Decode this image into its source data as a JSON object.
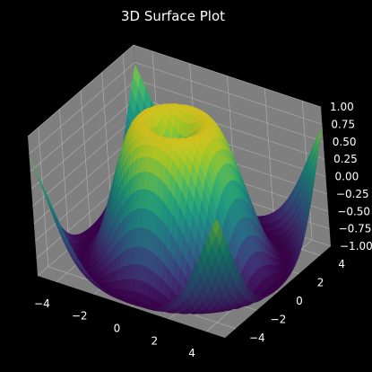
{
  "chart_data": {
    "type": "surface3d",
    "title": "3D Surface Plot",
    "function": "z = sin(sqrt(x^2 + y^2))",
    "x_range": [
      -5,
      5
    ],
    "y_range": [
      -5,
      5
    ],
    "z_range": [
      -1,
      1
    ],
    "colormap": "viridis",
    "x_ticks": [
      "−4",
      "−2",
      "0",
      "2",
      "4"
    ],
    "y_ticks": [
      "−4",
      "−2",
      "0",
      "2",
      "4"
    ],
    "z_ticks": [
      "−1.00",
      "−0.75",
      "−0.50",
      "−0.25",
      "0.00",
      "0.25",
      "0.50",
      "0.75",
      "1.00"
    ],
    "background": "#000000",
    "pane_color": "#7f7f7f",
    "grid": true
  }
}
